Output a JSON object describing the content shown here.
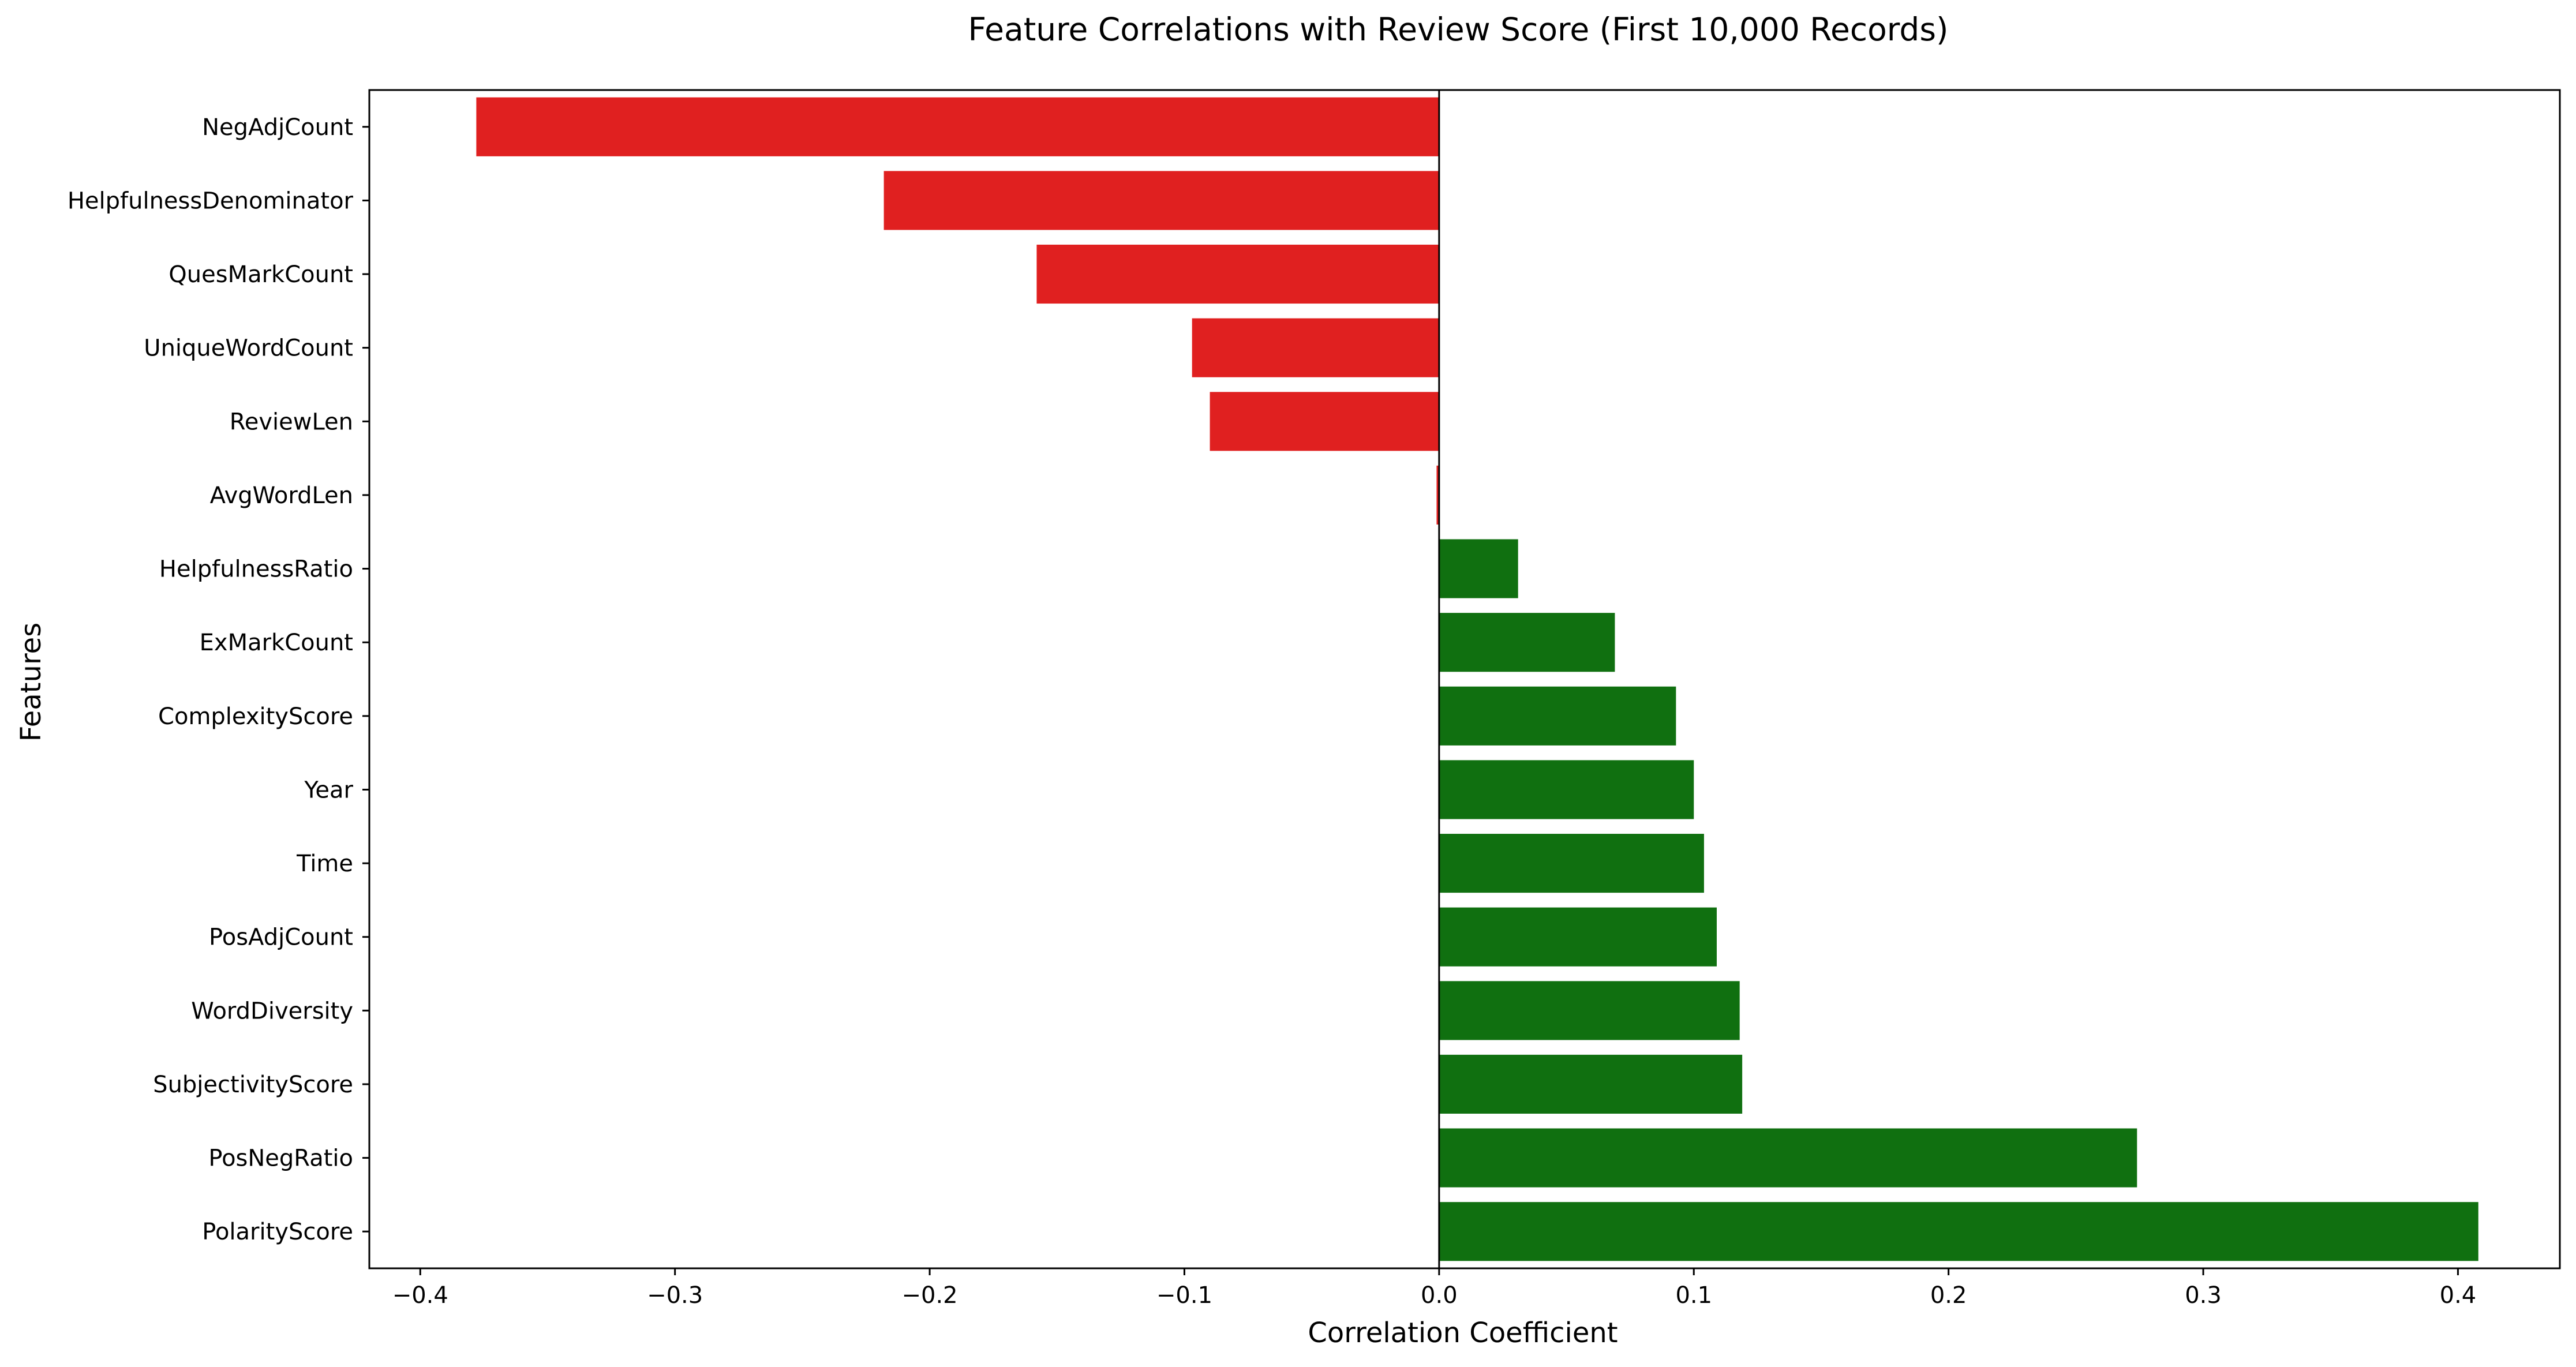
{
  "chart_data": {
    "type": "bar",
    "orientation": "horizontal",
    "title": "Feature Correlations with Review Score (First 10,000 Records)",
    "xlabel": "Correlation Coefficient",
    "ylabel": "Features",
    "xlim": [
      -0.42,
      0.44
    ],
    "xticks": [
      -0.4,
      -0.3,
      -0.2,
      -0.1,
      0.0,
      0.1,
      0.2,
      0.3,
      0.4
    ],
    "xtick_labels": [
      "−0.4",
      "−0.3",
      "−0.2",
      "−0.1",
      "0.0",
      "0.1",
      "0.2",
      "0.3",
      "0.4"
    ],
    "grid": false,
    "legend": "none",
    "colors": {
      "negative": "#e02020",
      "positive": "#107010",
      "axis": "#000000",
      "zero_line": "#000000"
    },
    "categories": [
      "NegAdjCount",
      "HelpfulnessDenominator",
      "QuesMarkCount",
      "UniqueWordCount",
      "ReviewLen",
      "AvgWordLen",
      "HelpfulnessRatio",
      "ExMarkCount",
      "ComplexityScore",
      "Year",
      "Time",
      "PosAdjCount",
      "WordDiversity",
      "SubjectivityScore",
      "PosNegRatio",
      "PolarityScore"
    ],
    "values": [
      -0.378,
      -0.218,
      -0.158,
      -0.097,
      -0.09,
      -0.001,
      0.031,
      0.069,
      0.093,
      0.1,
      0.104,
      0.109,
      0.118,
      0.119,
      0.274,
      0.408
    ]
  }
}
